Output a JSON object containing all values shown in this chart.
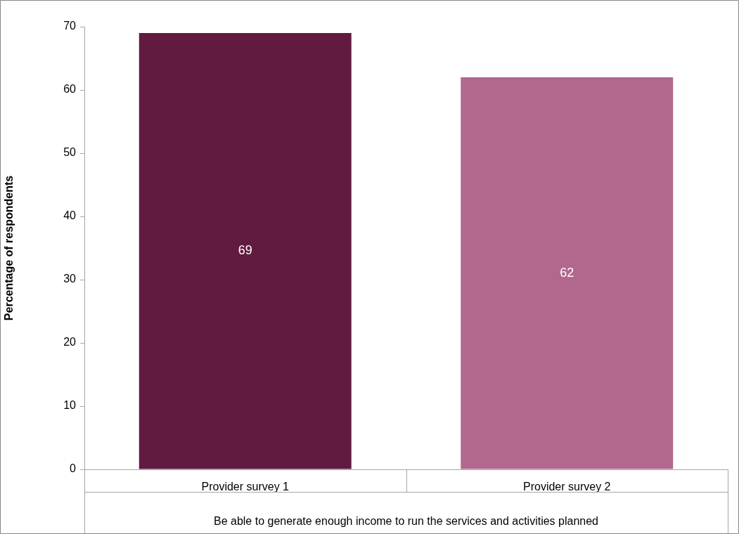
{
  "chart_data": {
    "type": "bar",
    "ylabel": "Percentage of respondents",
    "xlabel": "Be able to generate enough income to run the services and activities planned",
    "categories": [
      "Provider survey 1",
      "Provider survey 2"
    ],
    "values": [
      69,
      62
    ],
    "colors": [
      "#621b40",
      "#b2688c"
    ],
    "ylim": [
      0,
      70
    ],
    "yticks": [
      0,
      10,
      20,
      30,
      40,
      50,
      60,
      70
    ],
    "grid": false,
    "legend": false,
    "data_labels": true
  }
}
